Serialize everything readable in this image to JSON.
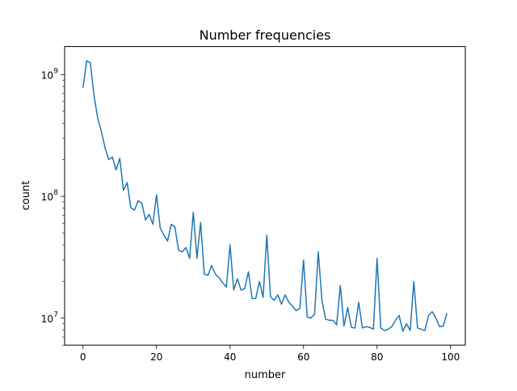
{
  "chart_data": {
    "type": "line",
    "title": "Number frequencies",
    "xlabel": "number",
    "ylabel": "count",
    "yscale": "log",
    "xlim": [
      -5,
      104
    ],
    "ylim": [
      6000000,
      1700000000
    ],
    "grid": false,
    "x_ticks": [
      0,
      20,
      40,
      60,
      80,
      100
    ],
    "x_tick_labels": [
      "0",
      "20",
      "40",
      "60",
      "80",
      "100"
    ],
    "y_major_ticks": [
      10000000,
      100000000,
      1000000000
    ],
    "y_tick_labels": [
      {
        "base": "10",
        "exp": "7"
      },
      {
        "base": "10",
        "exp": "8"
      },
      {
        "base": "10",
        "exp": "9"
      }
    ],
    "series_color": "#1f77b4",
    "x": [
      0,
      1,
      2,
      3,
      4,
      5,
      6,
      7,
      8,
      9,
      10,
      11,
      12,
      13,
      14,
      15,
      16,
      17,
      18,
      19,
      20,
      21,
      22,
      23,
      24,
      25,
      26,
      27,
      28,
      29,
      30,
      31,
      32,
      33,
      34,
      35,
      36,
      37,
      38,
      39,
      40,
      41,
      42,
      43,
      44,
      45,
      46,
      47,
      48,
      49,
      50,
      51,
      52,
      53,
      54,
      55,
      56,
      57,
      58,
      59,
      60,
      61,
      62,
      63,
      64,
      65,
      66,
      67,
      68,
      69,
      70,
      71,
      72,
      73,
      74,
      75,
      76,
      77,
      78,
      79,
      80,
      81,
      82,
      83,
      84,
      85,
      86,
      87,
      88,
      89,
      90,
      91,
      92,
      93,
      94,
      95,
      96,
      97,
      98,
      99
    ],
    "y": [
      780000000,
      1300000000,
      1250000000,
      670000000,
      440000000,
      340000000,
      250000000,
      200000000,
      210000000,
      165000000,
      205000000,
      112000000,
      130000000,
      81000000,
      77000000,
      92000000,
      88000000,
      64000000,
      71000000,
      59000000,
      103000000,
      55000000,
      48000000,
      43000000,
      59000000,
      56000000,
      36000000,
      35000000,
      38000000,
      31000000,
      74000000,
      31000000,
      61000000,
      23000000,
      22500000,
      27000000,
      23000000,
      21500000,
      19500000,
      18000000,
      40000000,
      17000000,
      21000000,
      17000000,
      17500000,
      24000000,
      14500000,
      14500000,
      20000000,
      14800000,
      48000000,
      15000000,
      14000000,
      15500000,
      13000000,
      15500000,
      13500000,
      12500000,
      11500000,
      12000000,
      30000000,
      10200000,
      10000000,
      10800000,
      35000000,
      14000000,
      9800000,
      9600000,
      9600000,
      8800000,
      18500000,
      8600000,
      12200000,
      8400000,
      8300000,
      13500000,
      8300000,
      8500000,
      8400000,
      8100000,
      31000000,
      8300000,
      7900000,
      8100000,
      8500000,
      9600000,
      10500000,
      7800000,
      9000000,
      7900000,
      20000000,
      8300000,
      8100000,
      7900000,
      10500000,
      11300000,
      10000000,
      8500000,
      8600000,
      11000000
    ]
  }
}
